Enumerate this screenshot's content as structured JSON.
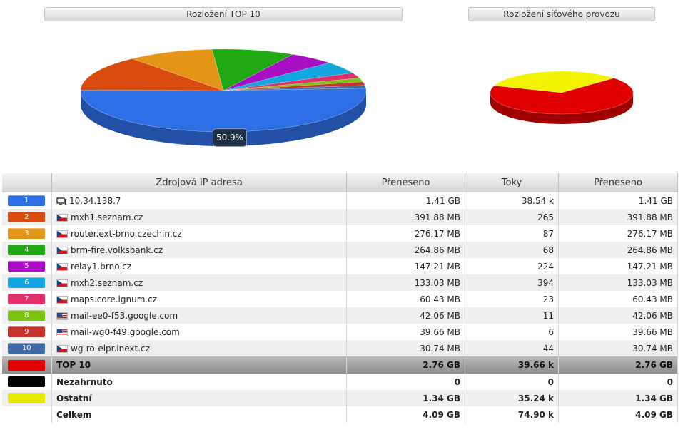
{
  "titles": {
    "top10": "Rozložení TOP 10",
    "network": "Rozložení síťového provozu"
  },
  "tooltip": "50.9%",
  "table": {
    "headers": [
      "",
      "Zdrojová IP adresa",
      "Přeneseno",
      "Toky",
      "Přeneseno"
    ],
    "rows": [
      {
        "rank": "1",
        "icon": "host-icon",
        "host": "10.34.138.7",
        "transferred": "1.41 GB",
        "flows": "38.54 k",
        "transferred2": "1.41 GB"
      },
      {
        "rank": "2",
        "icon": "flag-cz-icon",
        "host": "mxh1.seznam.cz",
        "transferred": "391.88 MB",
        "flows": "265",
        "transferred2": "391.88 MB"
      },
      {
        "rank": "3",
        "icon": "flag-cz-icon",
        "host": "router.ext-brno.czechin.cz",
        "transferred": "276.17 MB",
        "flows": "87",
        "transferred2": "276.17 MB"
      },
      {
        "rank": "4",
        "icon": "flag-cz-icon",
        "host": "brm-fire.volksbank.cz",
        "transferred": "264.86 MB",
        "flows": "68",
        "transferred2": "264.86 MB"
      },
      {
        "rank": "5",
        "icon": "flag-cz-icon",
        "host": "relay1.brno.cz",
        "transferred": "147.21 MB",
        "flows": "224",
        "transferred2": "147.21 MB"
      },
      {
        "rank": "6",
        "icon": "flag-cz-icon",
        "host": "mxh2.seznam.cz",
        "transferred": "133.03 MB",
        "flows": "394",
        "transferred2": "133.03 MB"
      },
      {
        "rank": "7",
        "icon": "flag-cz-icon",
        "host": "maps.core.ignum.cz",
        "transferred": "60.43 MB",
        "flows": "23",
        "transferred2": "60.43 MB"
      },
      {
        "rank": "8",
        "icon": "flag-us-icon",
        "host": "mail-ee0-f53.google.com",
        "transferred": "42.06 MB",
        "flows": "11",
        "transferred2": "42.06 MB"
      },
      {
        "rank": "9",
        "icon": "flag-us-icon",
        "host": "mail-wg0-f49.google.com",
        "transferred": "39.66 MB",
        "flows": "6",
        "transferred2": "39.66 MB"
      },
      {
        "rank": "10",
        "icon": "flag-cz-icon",
        "host": "wg-ro-elpr.inext.cz",
        "transferred": "30.74 MB",
        "flows": "44",
        "transferred2": "30.74 MB"
      }
    ],
    "summary": [
      {
        "label": "TOP 10",
        "transferred": "2.76 GB",
        "flows": "39.66 k",
        "transferred2": "2.76 GB",
        "swatch": "#e00000"
      },
      {
        "label": "Nezahrnuto",
        "transferred": "0",
        "flows": "0",
        "transferred2": "0",
        "swatch": "#000000"
      },
      {
        "label": "Ostatní",
        "transferred": "1.34 GB",
        "flows": "35.24 k",
        "transferred2": "1.34 GB",
        "swatch": "#e8e800"
      },
      {
        "label": "Celkem",
        "transferred": "4.09 GB",
        "flows": "74.90 k",
        "transferred2": "4.09 GB",
        "swatch": ""
      }
    ]
  },
  "colors": {
    "series": [
      "#2f6fe6",
      "#d94a0e",
      "#e39517",
      "#1fa812",
      "#a80fc4",
      "#13a6df",
      "#e0306c",
      "#7bc212",
      "#c8322a",
      "#3c6aa8"
    ],
    "network": [
      "#e00000",
      "#f4f400"
    ]
  },
  "chart_data": [
    {
      "type": "pie",
      "title": "Rozložení TOP 10",
      "categories": [
        "10.34.138.7",
        "mxh1.seznam.cz",
        "router.ext-brno.czechin.cz",
        "brm-fire.volksbank.cz",
        "relay1.brno.cz",
        "mxh2.seznam.cz",
        "maps.core.ignum.cz",
        "mail-ee0-f53.google.com",
        "mail-wg0-f49.google.com",
        "wg-ro-elpr.inext.cz"
      ],
      "values": [
        1443.84,
        391.88,
        276.17,
        264.86,
        147.21,
        133.03,
        60.43,
        42.06,
        39.66,
        30.74
      ],
      "unit": "MB",
      "highlight_label": "50.9%"
    },
    {
      "type": "pie",
      "title": "Rozložení síťového provozu",
      "categories": [
        "TOP 10",
        "Ostatní"
      ],
      "values": [
        2.76,
        1.34
      ],
      "unit": "GB"
    }
  ]
}
